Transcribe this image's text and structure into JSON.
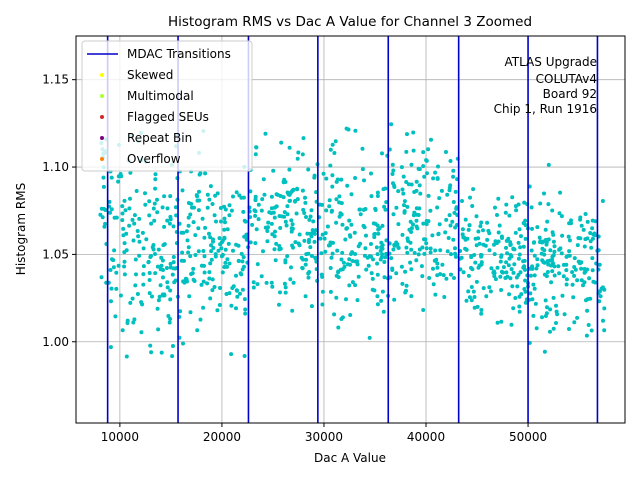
{
  "chart_data": {
    "type": "scatter",
    "title": "Histogram RMS vs Dac A Value for Channel 3 Zoomed",
    "xlabel": "Dac A Value",
    "ylabel": "Histogram RMS",
    "xlim": [
      5700,
      59500
    ],
    "ylim": [
      0.9535,
      1.175
    ],
    "xticks": [
      10000,
      20000,
      30000,
      40000,
      50000
    ],
    "xtick_labels": [
      "10000",
      "20000",
      "30000",
      "40000",
      "50000"
    ],
    "yticks": [
      1.0,
      1.05,
      1.1,
      1.15
    ],
    "ytick_labels": [
      "1.00",
      "1.05",
      "1.10",
      "1.15"
    ],
    "grid": true,
    "point_color": "#00bfbf",
    "line_color": "#0000cc",
    "mdac_transitions": [
      8800,
      15700,
      22600,
      29400,
      36300,
      43200,
      50000,
      56800
    ],
    "segments": [
      {
        "x_start": 8000,
        "x_end": 8800,
        "y_center": 1.08,
        "y_spread": 0.05
      },
      {
        "x_start": 8900,
        "x_end": 15700,
        "y_center": 1.055,
        "y_spread": 0.05
      },
      {
        "x_start": 15800,
        "x_end": 22600,
        "y_center": 1.055,
        "y_spread": 0.045
      },
      {
        "x_start": 22700,
        "x_end": 29400,
        "y_center": 1.065,
        "y_spread": 0.04
      },
      {
        "x_start": 29500,
        "x_end": 36300,
        "y_center": 1.06,
        "y_spread": 0.045
      },
      {
        "x_start": 36400,
        "x_end": 43200,
        "y_center": 1.07,
        "y_spread": 0.04
      },
      {
        "x_start": 43300,
        "x_end": 50000,
        "y_center": 1.05,
        "y_spread": 0.035
      },
      {
        "x_start": 50100,
        "x_end": 56800,
        "y_center": 1.045,
        "y_spread": 0.035
      },
      {
        "x_start": 56900,
        "x_end": 57500,
        "y_center": 1.035,
        "y_spread": 0.03
      }
    ],
    "legend": [
      {
        "label": "MDAC Transitions",
        "kind": "line",
        "color": "#0000cc"
      },
      {
        "label": "Skewed",
        "kind": "dot",
        "color": "#ffff00"
      },
      {
        "label": "Multimodal",
        "kind": "dot",
        "color": "#adff2f"
      },
      {
        "label": "Flagged SEUs",
        "kind": "dot",
        "color": "#d62728"
      },
      {
        "label": "Repeat Bin",
        "kind": "dot",
        "color": "#800080"
      },
      {
        "label": "Overflow",
        "kind": "dot",
        "color": "#ff7f0e"
      }
    ],
    "legend_position": "top-left",
    "annotation": [
      "ATLAS Upgrade",
      "COLUTAv4",
      "Board 92",
      "Chip 1, Run 1916"
    ]
  }
}
